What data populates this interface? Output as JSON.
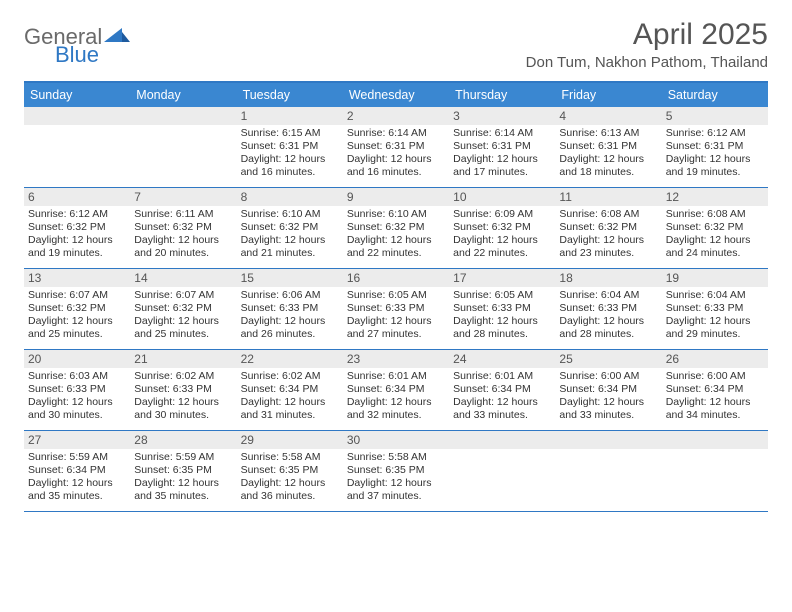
{
  "brand": {
    "part1": "General",
    "part2": "Blue"
  },
  "title": "April 2025",
  "location": "Don Tum, Nakhon Pathom, Thailand",
  "colors": {
    "accent": "#3a87d1",
    "accent_border": "#2f78c4",
    "daynum_bg": "#ececec",
    "text": "#333333",
    "muted": "#555555",
    "bg": "#ffffff"
  },
  "fonts": {
    "base": "Arial",
    "title_size": 30,
    "location_size": 15,
    "dayname_size": 12.5,
    "body_size": 10.5
  },
  "calendar": {
    "day_names": [
      "Sunday",
      "Monday",
      "Tuesday",
      "Wednesday",
      "Thursday",
      "Friday",
      "Saturday"
    ],
    "weeks": [
      [
        {
          "n": "",
          "sr": "",
          "ss": "",
          "dl": ""
        },
        {
          "n": "",
          "sr": "",
          "ss": "",
          "dl": ""
        },
        {
          "n": "1",
          "sr": "6:15 AM",
          "ss": "6:31 PM",
          "dl": "12 hours and 16 minutes."
        },
        {
          "n": "2",
          "sr": "6:14 AM",
          "ss": "6:31 PM",
          "dl": "12 hours and 16 minutes."
        },
        {
          "n": "3",
          "sr": "6:14 AM",
          "ss": "6:31 PM",
          "dl": "12 hours and 17 minutes."
        },
        {
          "n": "4",
          "sr": "6:13 AM",
          "ss": "6:31 PM",
          "dl": "12 hours and 18 minutes."
        },
        {
          "n": "5",
          "sr": "6:12 AM",
          "ss": "6:31 PM",
          "dl": "12 hours and 19 minutes."
        }
      ],
      [
        {
          "n": "6",
          "sr": "6:12 AM",
          "ss": "6:32 PM",
          "dl": "12 hours and 19 minutes."
        },
        {
          "n": "7",
          "sr": "6:11 AM",
          "ss": "6:32 PM",
          "dl": "12 hours and 20 minutes."
        },
        {
          "n": "8",
          "sr": "6:10 AM",
          "ss": "6:32 PM",
          "dl": "12 hours and 21 minutes."
        },
        {
          "n": "9",
          "sr": "6:10 AM",
          "ss": "6:32 PM",
          "dl": "12 hours and 22 minutes."
        },
        {
          "n": "10",
          "sr": "6:09 AM",
          "ss": "6:32 PM",
          "dl": "12 hours and 22 minutes."
        },
        {
          "n": "11",
          "sr": "6:08 AM",
          "ss": "6:32 PM",
          "dl": "12 hours and 23 minutes."
        },
        {
          "n": "12",
          "sr": "6:08 AM",
          "ss": "6:32 PM",
          "dl": "12 hours and 24 minutes."
        }
      ],
      [
        {
          "n": "13",
          "sr": "6:07 AM",
          "ss": "6:32 PM",
          "dl": "12 hours and 25 minutes."
        },
        {
          "n": "14",
          "sr": "6:07 AM",
          "ss": "6:32 PM",
          "dl": "12 hours and 25 minutes."
        },
        {
          "n": "15",
          "sr": "6:06 AM",
          "ss": "6:33 PM",
          "dl": "12 hours and 26 minutes."
        },
        {
          "n": "16",
          "sr": "6:05 AM",
          "ss": "6:33 PM",
          "dl": "12 hours and 27 minutes."
        },
        {
          "n": "17",
          "sr": "6:05 AM",
          "ss": "6:33 PM",
          "dl": "12 hours and 28 minutes."
        },
        {
          "n": "18",
          "sr": "6:04 AM",
          "ss": "6:33 PM",
          "dl": "12 hours and 28 minutes."
        },
        {
          "n": "19",
          "sr": "6:04 AM",
          "ss": "6:33 PM",
          "dl": "12 hours and 29 minutes."
        }
      ],
      [
        {
          "n": "20",
          "sr": "6:03 AM",
          "ss": "6:33 PM",
          "dl": "12 hours and 30 minutes."
        },
        {
          "n": "21",
          "sr": "6:02 AM",
          "ss": "6:33 PM",
          "dl": "12 hours and 30 minutes."
        },
        {
          "n": "22",
          "sr": "6:02 AM",
          "ss": "6:34 PM",
          "dl": "12 hours and 31 minutes."
        },
        {
          "n": "23",
          "sr": "6:01 AM",
          "ss": "6:34 PM",
          "dl": "12 hours and 32 minutes."
        },
        {
          "n": "24",
          "sr": "6:01 AM",
          "ss": "6:34 PM",
          "dl": "12 hours and 33 minutes."
        },
        {
          "n": "25",
          "sr": "6:00 AM",
          "ss": "6:34 PM",
          "dl": "12 hours and 33 minutes."
        },
        {
          "n": "26",
          "sr": "6:00 AM",
          "ss": "6:34 PM",
          "dl": "12 hours and 34 minutes."
        }
      ],
      [
        {
          "n": "27",
          "sr": "5:59 AM",
          "ss": "6:34 PM",
          "dl": "12 hours and 35 minutes."
        },
        {
          "n": "28",
          "sr": "5:59 AM",
          "ss": "6:35 PM",
          "dl": "12 hours and 35 minutes."
        },
        {
          "n": "29",
          "sr": "5:58 AM",
          "ss": "6:35 PM",
          "dl": "12 hours and 36 minutes."
        },
        {
          "n": "30",
          "sr": "5:58 AM",
          "ss": "6:35 PM",
          "dl": "12 hours and 37 minutes."
        },
        {
          "n": "",
          "sr": "",
          "ss": "",
          "dl": ""
        },
        {
          "n": "",
          "sr": "",
          "ss": "",
          "dl": ""
        },
        {
          "n": "",
          "sr": "",
          "ss": "",
          "dl": ""
        }
      ]
    ],
    "labels": {
      "sunrise": "Sunrise:",
      "sunset": "Sunset:",
      "daylight": "Daylight:"
    }
  }
}
